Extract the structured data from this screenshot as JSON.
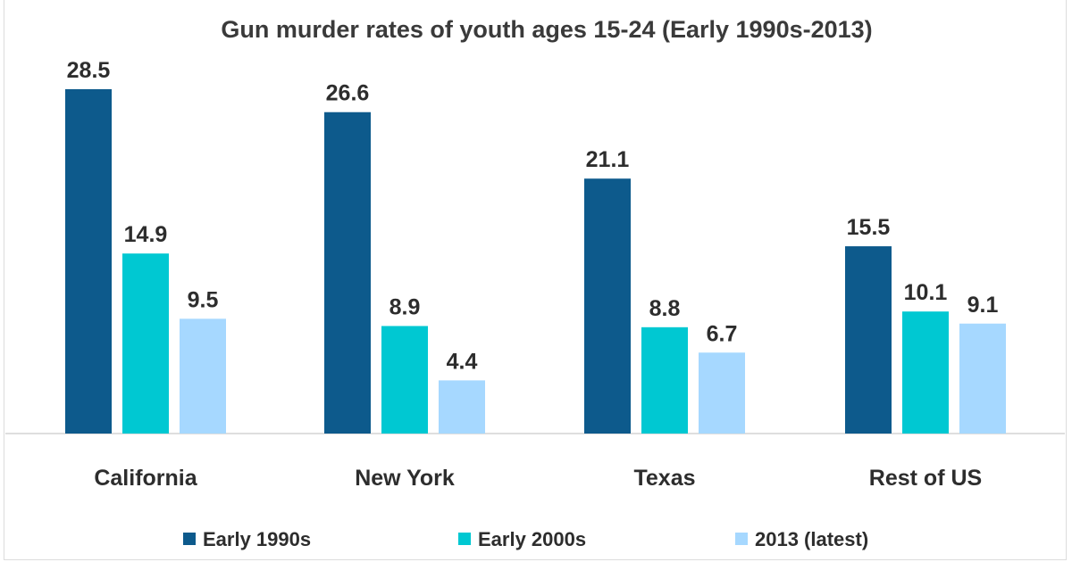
{
  "chart_data": {
    "type": "bar",
    "title": "Gun murder rates of youth ages 15-24 (Early 1990s-2013)",
    "categories": [
      "California",
      "New York",
      "Texas",
      "Rest of US"
    ],
    "series": [
      {
        "name": "Early 1990s",
        "color": "#0d5a8c",
        "values": [
          28.5,
          26.6,
          21.1,
          15.5
        ]
      },
      {
        "name": "Early 2000s",
        "color": "#00c8d2",
        "values": [
          14.9,
          8.9,
          8.8,
          10.1
        ]
      },
      {
        "name": "2013 (latest)",
        "color": "#a6d8ff",
        "values": [
          9.5,
          4.4,
          6.7,
          9.1
        ]
      }
    ],
    "ylim": [
      0,
      28.5
    ],
    "grid": false,
    "legend_position": "bottom",
    "xlabel": "",
    "ylabel": ""
  }
}
